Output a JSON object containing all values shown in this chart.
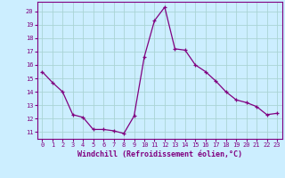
{
  "x": [
    0,
    1,
    2,
    3,
    4,
    5,
    6,
    7,
    8,
    9,
    10,
    11,
    12,
    13,
    14,
    15,
    16,
    17,
    18,
    19,
    20,
    21,
    22,
    23
  ],
  "y": [
    15.5,
    14.7,
    14.0,
    12.3,
    12.1,
    11.2,
    11.2,
    11.1,
    10.9,
    12.2,
    16.6,
    19.3,
    20.3,
    17.2,
    17.1,
    16.0,
    15.5,
    14.8,
    14.0,
    13.4,
    13.2,
    12.9,
    12.3,
    12.4
  ],
  "line_color": "#800080",
  "marker": "+",
  "marker_size": 3.5,
  "bg_color": "#cceeff",
  "grid_color": "#aad4d4",
  "ylabel_ticks": [
    11,
    12,
    13,
    14,
    15,
    16,
    17,
    18,
    19,
    20
  ],
  "xlabel": "Windchill (Refroidissement éolien,°C)",
  "xlabel_color": "#800080",
  "ylim": [
    10.5,
    20.7
  ],
  "xlim": [
    -0.5,
    23.5
  ],
  "tick_color": "#800080",
  "axis_color": "#800080",
  "tick_fontsize": 5.0,
  "xlabel_fontsize": 6.0
}
